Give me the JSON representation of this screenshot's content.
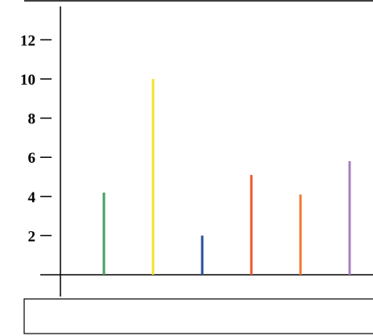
{
  "chart_data": {
    "type": "bar",
    "categories": [
      "",
      "",
      "",
      "",
      "",
      ""
    ],
    "values": [
      4.2,
      10.0,
      2.0,
      5.1,
      4.1,
      5.8
    ],
    "colors": [
      "#4a9e6b",
      "#f5e02a",
      "#2a4fa0",
      "#ee5533",
      "#f07a30",
      "#a77fc0"
    ],
    "yticks": [
      "2",
      "4",
      "6",
      "8",
      "10",
      "12"
    ],
    "ylim": [
      0,
      13
    ],
    "grid": false,
    "legend": "bottom",
    "title": "",
    "xlabel": "",
    "ylabel": ""
  }
}
